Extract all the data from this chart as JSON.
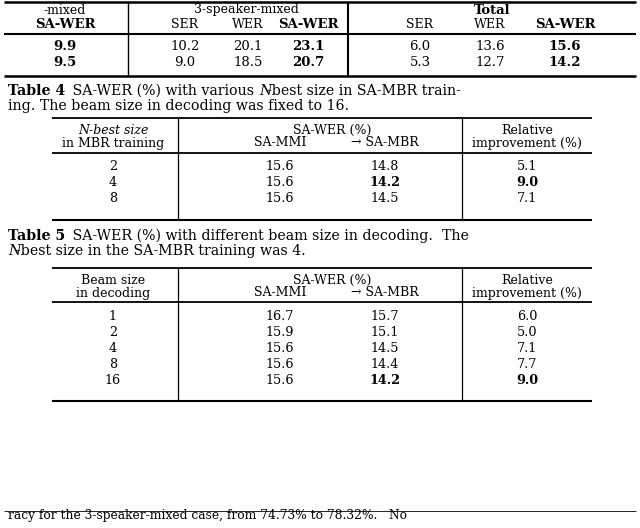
{
  "top_table": {
    "data_rows": [
      [
        "9.9",
        "10.2",
        "20.1",
        "23.1",
        "6.0",
        "13.6",
        "15.6"
      ],
      [
        "9.5",
        "9.0",
        "18.5",
        "20.7",
        "5.3",
        "12.7",
        "14.2"
      ]
    ],
    "bold_cols": [
      0,
      3,
      6
    ]
  },
  "table4": {
    "data_rows": [
      [
        "2",
        "15.6",
        "14.8",
        "5.1"
      ],
      [
        "4",
        "15.6",
        "14.2",
        "9.0"
      ],
      [
        "8",
        "15.6",
        "14.5",
        "7.1"
      ]
    ],
    "bold_row": 1
  },
  "table5": {
    "data_rows": [
      [
        "1",
        "16.7",
        "15.7",
        "6.0"
      ],
      [
        "2",
        "15.9",
        "15.1",
        "5.0"
      ],
      [
        "4",
        "15.6",
        "14.5",
        "7.1"
      ],
      [
        "8",
        "15.6",
        "14.4",
        "7.7"
      ],
      [
        "16",
        "15.6",
        "14.2",
        "9.0"
      ]
    ],
    "bold_row": 4
  }
}
